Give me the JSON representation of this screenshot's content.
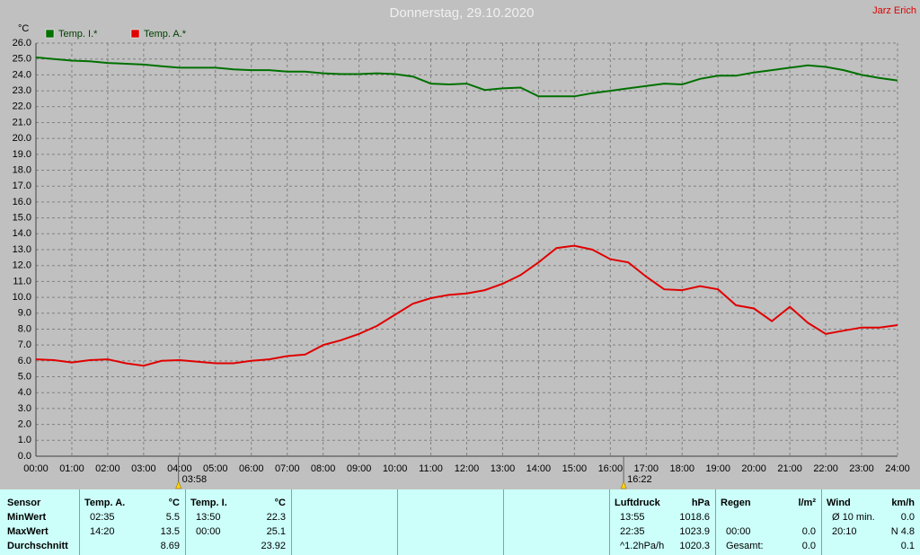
{
  "chart_data": {
    "type": "line",
    "title": "Donnerstag, 29.10.2020",
    "author": "Jarz Erich",
    "y_label": "°C",
    "legend": "top-left",
    "grid": true,
    "x": [
      0,
      0.5,
      1,
      1.5,
      2,
      2.5,
      3,
      3.5,
      4,
      4.5,
      5,
      5.5,
      6,
      6.5,
      7,
      7.5,
      8,
      8.5,
      9,
      9.5,
      10,
      10.5,
      11,
      11.5,
      12,
      12.5,
      13,
      13.5,
      14,
      14.5,
      15,
      15.5,
      16,
      16.5,
      17,
      17.5,
      18,
      18.5,
      19,
      19.5,
      20,
      20.5,
      21,
      21.5,
      22,
      22.5,
      23,
      23.5,
      24
    ],
    "series": [
      {
        "name": "Temp. I.*",
        "color": "#007000",
        "values": [
          25.1,
          25.0,
          24.9,
          24.85,
          24.75,
          24.7,
          24.65,
          24.55,
          24.45,
          24.45,
          24.45,
          24.35,
          24.3,
          24.3,
          24.2,
          24.2,
          24.1,
          24.05,
          24.05,
          24.1,
          24.05,
          23.9,
          23.45,
          23.4,
          23.45,
          23.05,
          23.15,
          23.2,
          22.65,
          22.65,
          22.65,
          22.85,
          23.0,
          23.15,
          23.3,
          23.45,
          23.4,
          23.75,
          23.95,
          23.95,
          24.15,
          24.3,
          24.45,
          24.6,
          24.5,
          24.3,
          24.0,
          23.8,
          23.65
        ]
      },
      {
        "name": "Temp. A.*",
        "color": "#e00000",
        "values": [
          6.1,
          6.05,
          5.9,
          6.05,
          6.1,
          5.85,
          5.7,
          6.0,
          6.05,
          5.95,
          5.85,
          5.85,
          6.0,
          6.1,
          6.3,
          6.4,
          7.0,
          7.3,
          7.7,
          8.2,
          8.9,
          9.6,
          9.95,
          10.15,
          10.25,
          10.45,
          10.85,
          11.4,
          12.2,
          13.1,
          13.25,
          13.0,
          12.4,
          12.2,
          11.3,
          10.5,
          10.45,
          10.7,
          10.5,
          9.5,
          9.3,
          8.5,
          9.4,
          8.4,
          7.7,
          7.9,
          8.1,
          8.1,
          8.25
        ]
      }
    ],
    "xlim": [
      0,
      24
    ],
    "xticks": [
      {
        "value": 0,
        "label": "00:00"
      },
      {
        "value": 1,
        "label": "01:00"
      },
      {
        "value": 2,
        "label": "02:00"
      },
      {
        "value": 3,
        "label": "03:00"
      },
      {
        "value": 4,
        "label": "04:00"
      },
      {
        "value": 5,
        "label": "05:00"
      },
      {
        "value": 6,
        "label": "06:00"
      },
      {
        "value": 7,
        "label": "07:00"
      },
      {
        "value": 8,
        "label": "08:00"
      },
      {
        "value": 9,
        "label": "09:00"
      },
      {
        "value": 10,
        "label": "10:00"
      },
      {
        "value": 11,
        "label": "11:00"
      },
      {
        "value": 12,
        "label": "12:00"
      },
      {
        "value": 13,
        "label": "13:00"
      },
      {
        "value": 14,
        "label": "14:00"
      },
      {
        "value": 15,
        "label": "15:00"
      },
      {
        "value": 16,
        "label": "16:00"
      },
      {
        "value": 17,
        "label": "17:00"
      },
      {
        "value": 18,
        "label": "18:00"
      },
      {
        "value": 19,
        "label": "19:00"
      },
      {
        "value": 20,
        "label": "20:00"
      },
      {
        "value": 21,
        "label": "21:00"
      },
      {
        "value": 22,
        "label": "22:00"
      },
      {
        "value": 23,
        "label": "23:00"
      },
      {
        "value": 24,
        "label": "24:00"
      }
    ],
    "ylim": [
      0,
      26
    ],
    "yticks": [
      {
        "value": 0,
        "label": "0.0"
      },
      {
        "value": 1,
        "label": "1.0"
      },
      {
        "value": 2,
        "label": "2.0"
      },
      {
        "value": 3,
        "label": "3.0"
      },
      {
        "value": 4,
        "label": "4.0"
      },
      {
        "value": 5,
        "label": "5.0"
      },
      {
        "value": 6,
        "label": "6.0"
      },
      {
        "value": 7,
        "label": "7.0"
      },
      {
        "value": 8,
        "label": "8.0"
      },
      {
        "value": 9,
        "label": "9.0"
      },
      {
        "value": 10,
        "label": "10.0"
      },
      {
        "value": 11,
        "label": "11.0"
      },
      {
        "value": 12,
        "label": "12.0"
      },
      {
        "value": 13,
        "label": "13.0"
      },
      {
        "value": 14,
        "label": "14.0"
      },
      {
        "value": 15,
        "label": "15.0"
      },
      {
        "value": 16,
        "label": "16.0"
      },
      {
        "value": 17,
        "label": "17.0"
      },
      {
        "value": 18,
        "label": "18.0"
      },
      {
        "value": 19,
        "label": "19.0"
      },
      {
        "value": 20,
        "label": "20.0"
      },
      {
        "value": 21,
        "label": "21.0"
      },
      {
        "value": 22,
        "label": "22.0"
      },
      {
        "value": 23,
        "label": "23.0"
      },
      {
        "value": 24,
        "label": "24.0"
      },
      {
        "value": 25,
        "label": "25.0"
      },
      {
        "value": 26,
        "label": "26.0"
      }
    ],
    "sun_events": [
      {
        "value": 3.97,
        "label": "03:58"
      },
      {
        "value": 16.37,
        "label": "16:22"
      }
    ]
  },
  "stats": {
    "row_labels": [
      "Sensor",
      "MinWert",
      "MaxWert",
      "Durchschnitt"
    ],
    "groups": [
      {
        "name": "Temp. A.",
        "unit": "°C",
        "rows": [
          [
            "02:35",
            "5.5"
          ],
          [
            "14:20",
            "13.5"
          ],
          [
            null,
            "8.69"
          ]
        ]
      },
      {
        "name": "Temp. I.",
        "unit": "°C",
        "rows": [
          [
            "13:50",
            "22.3"
          ],
          [
            "00:00",
            "25.1"
          ],
          [
            null,
            "23.92"
          ]
        ]
      },
      {
        "name": "Luftdruck",
        "unit": "hPa",
        "rows": [
          [
            "13:55",
            "1018.6"
          ],
          [
            "22:35",
            "1023.9"
          ],
          [
            "^1.2hPa/h",
            "1020.3"
          ]
        ]
      },
      {
        "name": "Regen",
        "unit": "l/m²",
        "rows": [
          [
            null,
            null
          ],
          [
            "00:00",
            "0.0"
          ],
          [
            "Gesamt:",
            "0.0"
          ]
        ]
      },
      {
        "name": "Wind",
        "unit": "km/h",
        "rows": [
          [
            "Ø 10 min.",
            "0.0"
          ],
          [
            "20:10",
            "N 4.8"
          ],
          [
            null,
            "0.1"
          ]
        ]
      }
    ]
  }
}
